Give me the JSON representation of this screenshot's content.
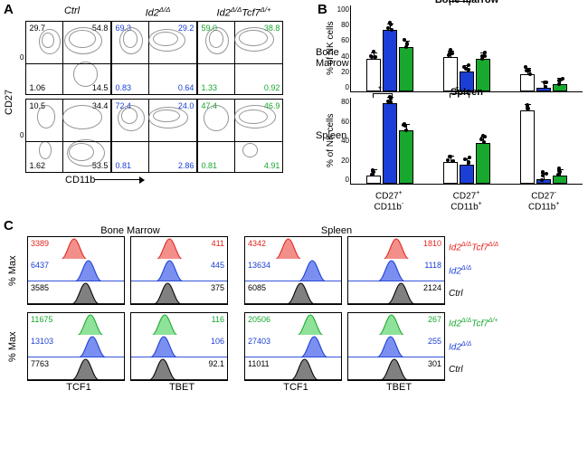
{
  "colors": {
    "ctrl": "#000000",
    "id2": "#1b3fd6",
    "tcf7het": "#17a82d",
    "tcf7ko": "#e3241c",
    "bar_ctrl_fill": "#ffffff",
    "bar_id2_fill": "#1b3fd6",
    "bar_tcf7_fill": "#17a82d",
    "hist_ctrl_fill": "#808080",
    "hist_id2_fill": "#7a8ff0",
    "hist_tcf7ko_fill": "#f28f8b",
    "hist_tcf7het_fill": "#8fe29a"
  },
  "panelA": {
    "label": "A",
    "col_headers": [
      "Ctrl",
      "Id2Δ/Δ",
      "Id2Δ/ΔTcf7Δ/+"
    ],
    "row_labels": [
      "Bone Marrow",
      "Spleen"
    ],
    "y_axis": "CD27",
    "x_axis": "CD11b",
    "ytick": "0",
    "plots": [
      [
        {
          "tl": "29.7",
          "tr": "54.8",
          "bl": "1.06",
          "br": "14.5",
          "color": "#000000",
          "cloud": "bm-ctrl"
        },
        {
          "tl": "69.3",
          "tr": "29.2",
          "bl": "0.83",
          "br": "0.64",
          "color": "#1b3fd6",
          "cloud": "bm-id2"
        },
        {
          "tl": "59.0",
          "tr": "38.8",
          "bl": "1.33",
          "br": "0.92",
          "color": "#17a82d",
          "cloud": "bm-tcf"
        }
      ],
      [
        {
          "tl": "10.5",
          "tr": "34.4",
          "bl": "1.62",
          "br": "53.5",
          "color": "#000000",
          "cloud": "sp-ctrl"
        },
        {
          "tl": "72.4",
          "tr": "24.0",
          "bl": "0.81",
          "br": "2.86",
          "color": "#1b3fd6",
          "cloud": "sp-id2"
        },
        {
          "tl": "47.4",
          "tr": "46.9",
          "bl": "0.81",
          "br": "4.91",
          "color": "#17a82d",
          "cloud": "sp-tcf"
        }
      ]
    ]
  },
  "panelB": {
    "label": "B",
    "y_axis": "% of NK cells",
    "charts": [
      {
        "title": "Bone marrow",
        "ymax": 100,
        "yticks": [
          "100",
          "80",
          "60",
          "40",
          "20",
          "0"
        ],
        "groups": [
          {
            "vals": [
              38,
              72,
              52
            ],
            "sig": null
          },
          {
            "vals": [
              40,
              23,
              38
            ],
            "sig": {
              "pair": [
                1,
                2
              ],
              "label": "*"
            }
          },
          {
            "vals": [
              20,
              4,
              8
            ],
            "sig": null
          }
        ]
      },
      {
        "title": "Spleen",
        "ymax": 100,
        "yticks": [
          "80",
          "60",
          "40",
          "20",
          "0"
        ],
        "groups": [
          {
            "vals": [
              8,
              75,
              50
            ],
            "sig": {
              "pair": [
                1,
                2
              ],
              "label": "*"
            }
          },
          {
            "vals": [
              20,
              18,
              38
            ],
            "sig": {
              "pair": [
                1,
                2
              ],
              "label": "*"
            }
          },
          {
            "vals": [
              68,
              4,
              8
            ],
            "sig": null
          }
        ]
      }
    ],
    "categories": [
      {
        "l1": "CD27+",
        "l2": "CD11b-"
      },
      {
        "l1": "CD27+",
        "l2": "CD11b+"
      },
      {
        "l1": "CD27-",
        "l2": "CD11b+"
      }
    ],
    "bar_colors": [
      "#ffffff",
      "#1b3fd6",
      "#17a82d"
    ]
  },
  "panelC": {
    "label": "C",
    "tissue_headers": [
      "Bone Marrow",
      "Spleen"
    ],
    "y_axis": "% Max",
    "x_labels": [
      "TCF1",
      "TBET",
      "TCF1",
      "TBET"
    ],
    "block1": {
      "legends": [
        "Id2Δ/ΔTcf7Δ/Δ",
        "Id2Δ/Δ",
        "Ctrl"
      ],
      "legend_colors": [
        "#e3241c",
        "#1b3fd6",
        "#000000"
      ],
      "plots": [
        {
          "vals": [
            "3389",
            "6437",
            "3585"
          ],
          "align": "left",
          "peaks": [
            0.48,
            0.63,
            0.6
          ]
        },
        {
          "vals": [
            "411",
            "445",
            "375"
          ],
          "align": "right",
          "peaks": [
            0.4,
            0.4,
            0.38
          ]
        },
        {
          "vals": [
            "4342",
            "13634",
            "6085"
          ],
          "align": "left",
          "peaks": [
            0.45,
            0.7,
            0.58
          ]
        },
        {
          "vals": [
            "1810",
            "1118",
            "2124"
          ],
          "align": "right",
          "peaks": [
            0.5,
            0.45,
            0.55
          ]
        }
      ]
    },
    "block2": {
      "legends": [
        "Id2Δ/ΔTcf7Δ/+",
        "Id2Δ/Δ",
        "Ctrl"
      ],
      "legend_colors": [
        "#17a82d",
        "#1b3fd6",
        "#000000"
      ],
      "plots": [
        {
          "vals": [
            "11675",
            "13103",
            "7763"
          ],
          "align": "left",
          "peaks": [
            0.65,
            0.67,
            0.6
          ]
        },
        {
          "vals": [
            "116",
            "106",
            "92.1"
          ],
          "align": "right",
          "peaks": [
            0.35,
            0.34,
            0.33
          ]
        },
        {
          "vals": [
            "20506",
            "27403",
            "11011"
          ],
          "align": "left",
          "peaks": [
            0.68,
            0.72,
            0.62
          ]
        },
        {
          "vals": [
            "267",
            "255",
            "301"
          ],
          "align": "right",
          "peaks": [
            0.45,
            0.44,
            0.48
          ]
        }
      ]
    }
  }
}
